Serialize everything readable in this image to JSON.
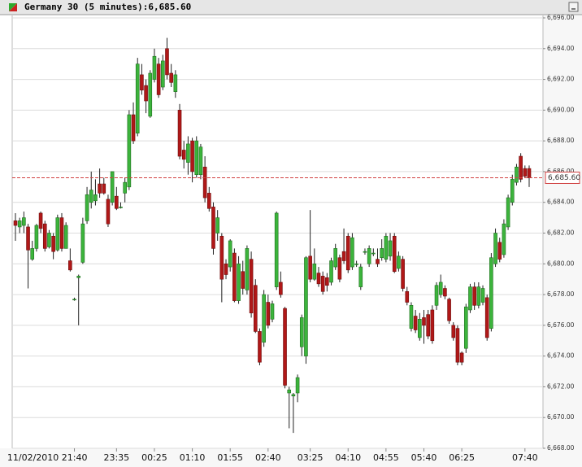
{
  "chart_data": {
    "type": "candlestick",
    "title": "Germany 30 (5 minutes):6,685.60",
    "up_color": "#3cb43c",
    "down_color": "#b01818",
    "grid": true,
    "last_price": {
      "value": 6685.6,
      "label": "6,685.60"
    },
    "last_price_color": "#d04040",
    "ylim": [
      6668,
      6696
    ],
    "yticks": [
      {
        "value": 6668,
        "label": "6,668.00"
      },
      {
        "value": 6670,
        "label": "6,670.00"
      },
      {
        "value": 6672,
        "label": "6,672.00"
      },
      {
        "value": 6674,
        "label": "6,674.00"
      },
      {
        "value": 6676,
        "label": "6,676.00"
      },
      {
        "value": 6678,
        "label": "6,678.00"
      },
      {
        "value": 6680,
        "label": "6,680.00"
      },
      {
        "value": 6682,
        "label": "6,682.00"
      },
      {
        "value": 6684,
        "label": "6,684.00"
      },
      {
        "value": 6686,
        "label": "6,686.00"
      },
      {
        "value": 6688,
        "label": "6,688.00"
      },
      {
        "value": 6690,
        "label": "6,690.00"
      },
      {
        "value": 6692,
        "label": "6,692.00"
      },
      {
        "value": 6694,
        "label": "6,694.00"
      },
      {
        "value": 6696,
        "label": "6,696.00"
      }
    ],
    "categories": [
      null,
      null,
      null,
      null,
      null,
      null,
      null,
      null,
      null,
      null,
      null,
      null,
      null,
      null,
      "11/02/2010 21:40",
      null,
      null,
      null,
      null,
      null,
      null,
      null,
      null,
      null,
      "23:35",
      null,
      null,
      null,
      null,
      null,
      null,
      null,
      null,
      "00:25",
      null,
      null,
      null,
      null,
      null,
      null,
      null,
      null,
      "01:10",
      null,
      null,
      null,
      null,
      null,
      null,
      null,
      null,
      "01:55",
      null,
      null,
      null,
      null,
      null,
      null,
      null,
      null,
      "02:40",
      null,
      null,
      null,
      null,
      null,
      null,
      null,
      null,
      null,
      "03:25",
      null,
      null,
      null,
      null,
      null,
      null,
      null,
      null,
      "04:10",
      null,
      null,
      null,
      null,
      null,
      null,
      null,
      null,
      "04:55",
      null,
      null,
      null,
      null,
      null,
      null,
      null,
      null,
      "05:40",
      null,
      null,
      null,
      null,
      null,
      null,
      null,
      null,
      "06:25",
      null,
      null,
      null,
      null,
      null,
      null,
      null,
      null,
      null,
      null,
      null,
      null,
      null,
      null,
      "07:40",
      null
    ],
    "open": [
      6682.8,
      6682.4,
      6682.5,
      6682.4,
      6680.3,
      6681.0,
      6683.3,
      6682.6,
      6681.1,
      6681.8,
      6680.9,
      6683.0,
      6681.0,
      6680.2,
      6677.7,
      6679.1,
      6680.1,
      6682.8,
      6684.0,
      6684.1,
      6685.2,
      6685.2,
      6684.2,
      6684.0,
      6684.4,
      6683.7,
      6684.6,
      6685.0,
      6689.7,
      6688.5,
      6692.3,
      6691.6,
      6689.6,
      6692.0,
      6693.0,
      6691.5,
      6694.0,
      6692.4,
      6691.2,
      6690.0,
      6687.4,
      6686.6,
      6688.0,
      6685.8,
      6685.8,
      6686.3,
      6684.6,
      6683.7,
      6682.0,
      6681.8,
      6680.0,
      6679.8,
      6680.7,
      6677.6,
      6679.5,
      6678.3,
      6680.3,
      6678.6,
      6675.6,
      6674.9,
      6677.5,
      6676.4,
      6678.5,
      6678.8,
      6677.1,
      6671.6,
      6671.4,
      6671.6,
      6674.6,
      6674.0,
      6680.5,
      6679.0,
      6679.4,
      6679.2,
      6679.1,
      6678.8,
      6679.8,
      6680.4,
      6680.8,
      6681.8,
      6679.8,
      6680.0,
      6678.5,
      6680.8,
      6680.0,
      6680.7,
      6680.3,
      6680.4,
      6680.3,
      6680.5,
      6681.8,
      6679.7,
      6680.3,
      6678.2,
      6675.8,
      6676.6,
      6675.2,
      6676.5,
      6676.7,
      6677.0,
      6677.3,
      6678.0,
      6678.4,
      6677.7,
      6676.0,
      6675.8,
      6674.2,
      6674.5,
      6677.0,
      6678.5,
      6677.3,
      6677.5,
      6677.8,
      6675.8,
      6680.0,
      6681.4,
      6680.6,
      6682.4,
      6684.0,
      6685.3,
      6687.0,
      6686.2,
      6686.2
    ],
    "high": [
      6683.3,
      6683.0,
      6683.4,
      6682.6,
      6681.5,
      6682.6,
      6683.4,
      6682.8,
      6682.2,
      6682.0,
      6683.2,
      6683.3,
      6682.7,
      6681.0,
      6677.8,
      6679.3,
      6683.0,
      6685.0,
      6686.0,
      6685.5,
      6686.2,
      6685.6,
      6684.5,
      6686.0,
      6685.0,
      6684.0,
      6685.6,
      6690.0,
      6690.5,
      6693.4,
      6693.0,
      6692.0,
      6692.6,
      6694.0,
      6693.4,
      6693.6,
      6694.7,
      6693.0,
      6692.6,
      6690.4,
      6688.0,
      6688.3,
      6688.2,
      6688.3,
      6687.8,
      6687.0,
      6685.0,
      6684.0,
      6683.5,
      6682.0,
      6680.3,
      6681.6,
      6681.0,
      6680.5,
      6680.2,
      6681.2,
      6680.8,
      6679.0,
      6675.8,
      6678.3,
      6678.0,
      6677.6,
      6683.4,
      6679.5,
      6677.2,
      6672.0,
      6671.6,
      6672.8,
      6676.7,
      6680.5,
      6683.5,
      6681.0,
      6679.8,
      6679.5,
      6679.4,
      6680.4,
      6681.3,
      6680.6,
      6682.3,
      6682.0,
      6682.0,
      6680.2,
      6680.0,
      6681.0,
      6681.2,
      6681.0,
      6681.0,
      6681.6,
      6682.0,
      6682.0,
      6682.0,
      6680.8,
      6680.5,
      6678.5,
      6677.5,
      6677.0,
      6676.8,
      6677.0,
      6677.0,
      6677.3,
      6678.8,
      6679.3,
      6678.6,
      6677.8,
      6676.2,
      6676.0,
      6674.3,
      6677.4,
      6678.7,
      6678.8,
      6678.8,
      6678.6,
      6678.0,
      6680.7,
      6682.3,
      6681.7,
      6682.9,
      6684.5,
      6685.8,
      6686.5,
      6687.2,
      6686.4,
      6686.4
    ],
    "low": [
      6681.5,
      6682.0,
      6682.0,
      6678.4,
      6680.2,
      6680.8,
      6682.0,
      6680.8,
      6681.0,
      6680.3,
      6680.8,
      6680.8,
      6681.0,
      6679.5,
      6677.6,
      6676.0,
      6680.0,
      6682.6,
      6683.6,
      6683.8,
      6684.3,
      6684.5,
      6682.4,
      6683.8,
      6683.5,
      6683.6,
      6684.0,
      6684.8,
      6687.8,
      6688.3,
      6691.0,
      6689.8,
      6689.5,
      6691.8,
      6690.8,
      6691.3,
      6692.0,
      6691.5,
      6690.8,
      6686.8,
      6686.2,
      6685.8,
      6685.3,
      6685.6,
      6685.5,
      6684.0,
      6683.4,
      6680.6,
      6681.5,
      6677.5,
      6679.0,
      6679.5,
      6677.5,
      6677.4,
      6678.0,
      6678.0,
      6676.5,
      6675.5,
      6673.4,
      6674.6,
      6675.8,
      6676.2,
      6678.3,
      6677.8,
      6671.9,
      6669.3,
      6669.0,
      6671.0,
      6674.0,
      6673.5,
      6678.8,
      6678.9,
      6678.5,
      6678.0,
      6678.2,
      6678.6,
      6679.6,
      6678.8,
      6680.0,
      6679.4,
      6679.6,
      6679.8,
      6678.3,
      6680.6,
      6679.8,
      6680.5,
      6679.8,
      6680.2,
      6680.1,
      6680.2,
      6679.4,
      6679.5,
      6678.2,
      6677.3,
      6675.6,
      6675.5,
      6675.0,
      6674.8,
      6675.1,
      6674.8,
      6677.0,
      6677.8,
      6677.7,
      6676.1,
      6675.0,
      6673.4,
      6673.4,
      6674.2,
      6676.8,
      6677.0,
      6677.1,
      6677.3,
      6675.0,
      6675.6,
      6679.8,
      6680.1,
      6680.4,
      6682.2,
      6683.8,
      6685.1,
      6685.3,
      6685.6,
      6685.0
    ],
    "close": [
      6682.5,
      6682.8,
      6683.0,
      6680.9,
      6681.0,
      6682.5,
      6682.3,
      6681.0,
      6682.0,
      6680.8,
      6683.0,
      6681.0,
      6682.5,
      6679.6,
      6677.7,
      6679.2,
      6682.6,
      6684.5,
      6684.8,
      6684.5,
      6684.6,
      6684.6,
      6682.6,
      6686.0,
      6683.6,
      6683.7,
      6685.3,
      6689.7,
      6688.0,
      6693.0,
      6691.3,
      6690.6,
      6692.4,
      6693.5,
      6691.0,
      6693.2,
      6692.3,
      6691.8,
      6692.3,
      6687.0,
      6686.8,
      6687.8,
      6686.0,
      6688.0,
      6687.6,
      6684.3,
      6683.6,
      6681.0,
      6683.0,
      6679.0,
      6679.3,
      6681.5,
      6677.6,
      6680.0,
      6678.4,
      6681.0,
      6676.8,
      6675.6,
      6673.6,
      6678.0,
      6676.0,
      6677.4,
      6683.3,
      6678.0,
      6672.1,
      6671.8,
      6671.5,
      6672.6,
      6676.5,
      6680.4,
      6679.0,
      6680.0,
      6678.7,
      6678.2,
      6678.6,
      6680.2,
      6681.0,
      6679.0,
      6680.2,
      6679.6,
      6681.7,
      6680.0,
      6679.8,
      6680.8,
      6681.0,
      6680.7,
      6680.0,
      6681.0,
      6681.8,
      6681.5,
      6679.5,
      6680.5,
      6678.4,
      6677.5,
      6677.3,
      6675.7,
      6676.4,
      6676.0,
      6675.3,
      6675.0,
      6678.6,
      6678.8,
      6677.9,
      6676.3,
      6675.2,
      6673.6,
      6673.6,
      6677.2,
      6678.5,
      6677.3,
      6678.5,
      6678.4,
      6675.2,
      6680.4,
      6682.0,
      6680.3,
      6682.6,
      6684.3,
      6685.5,
      6686.3,
      6685.5,
      6685.7,
      6685.6
    ]
  }
}
